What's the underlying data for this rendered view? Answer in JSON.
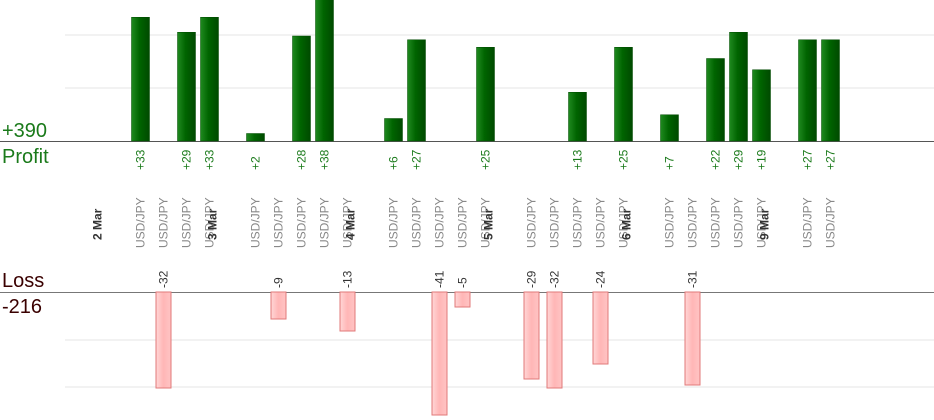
{
  "chart_data": {
    "type": "bar",
    "profit": {
      "label": "Profit",
      "total": "+390",
      "color": "#006400",
      "label_color": "#1a7a1a"
    },
    "loss": {
      "label": "Loss",
      "total": "-216",
      "color": "#ffb6b6",
      "border": "#e07a7a",
      "label_color": "#3a0000"
    },
    "groups": [
      {
        "label": "2 Mar",
        "trades": [
          {
            "symbol": "USD/JPY",
            "value": 33
          },
          {
            "symbol": "USD/JPY",
            "value": -32
          },
          {
            "symbol": "USD/JPY",
            "value": 29
          },
          {
            "symbol": "USD/JPY",
            "value": 33
          }
        ]
      },
      {
        "label": "3 Mar",
        "trades": [
          {
            "symbol": "USD/JPY",
            "value": 2
          },
          {
            "symbol": "USD/JPY",
            "value": -9
          },
          {
            "symbol": "USD/JPY",
            "value": 28
          },
          {
            "symbol": "USD/JPY",
            "value": 38
          },
          {
            "symbol": "USD/JPY",
            "value": -13
          }
        ]
      },
      {
        "label": "4 Mar",
        "trades": [
          {
            "symbol": "USD/JPY",
            "value": 6
          },
          {
            "symbol": "USD/JPY",
            "value": 27
          },
          {
            "symbol": "USD/JPY",
            "value": -41
          },
          {
            "symbol": "USD/JPY",
            "value": -5
          },
          {
            "symbol": "USD/JPY",
            "value": 25
          }
        ]
      },
      {
        "label": "5 Mar",
        "trades": [
          {
            "symbol": "USD/JPY",
            "value": -29
          },
          {
            "symbol": "USD/JPY",
            "value": -32
          },
          {
            "symbol": "USD/JPY",
            "value": 13
          },
          {
            "symbol": "USD/JPY",
            "value": -24
          },
          {
            "symbol": "USD/JPY",
            "value": 25
          }
        ]
      },
      {
        "label": "6 Mar",
        "trades": [
          {
            "symbol": "USD/JPY",
            "value": 7
          },
          {
            "symbol": "USD/JPY",
            "value": -31
          },
          {
            "symbol": "USD/JPY",
            "value": 22
          },
          {
            "symbol": "USD/JPY",
            "value": 29
          },
          {
            "symbol": "USD/JPY",
            "value": 19
          }
        ]
      },
      {
        "label": "9 Mar",
        "trades": [
          {
            "symbol": "USD/JPY",
            "value": 27
          },
          {
            "symbol": "USD/JPY",
            "value": 27
          }
        ]
      }
    ]
  }
}
